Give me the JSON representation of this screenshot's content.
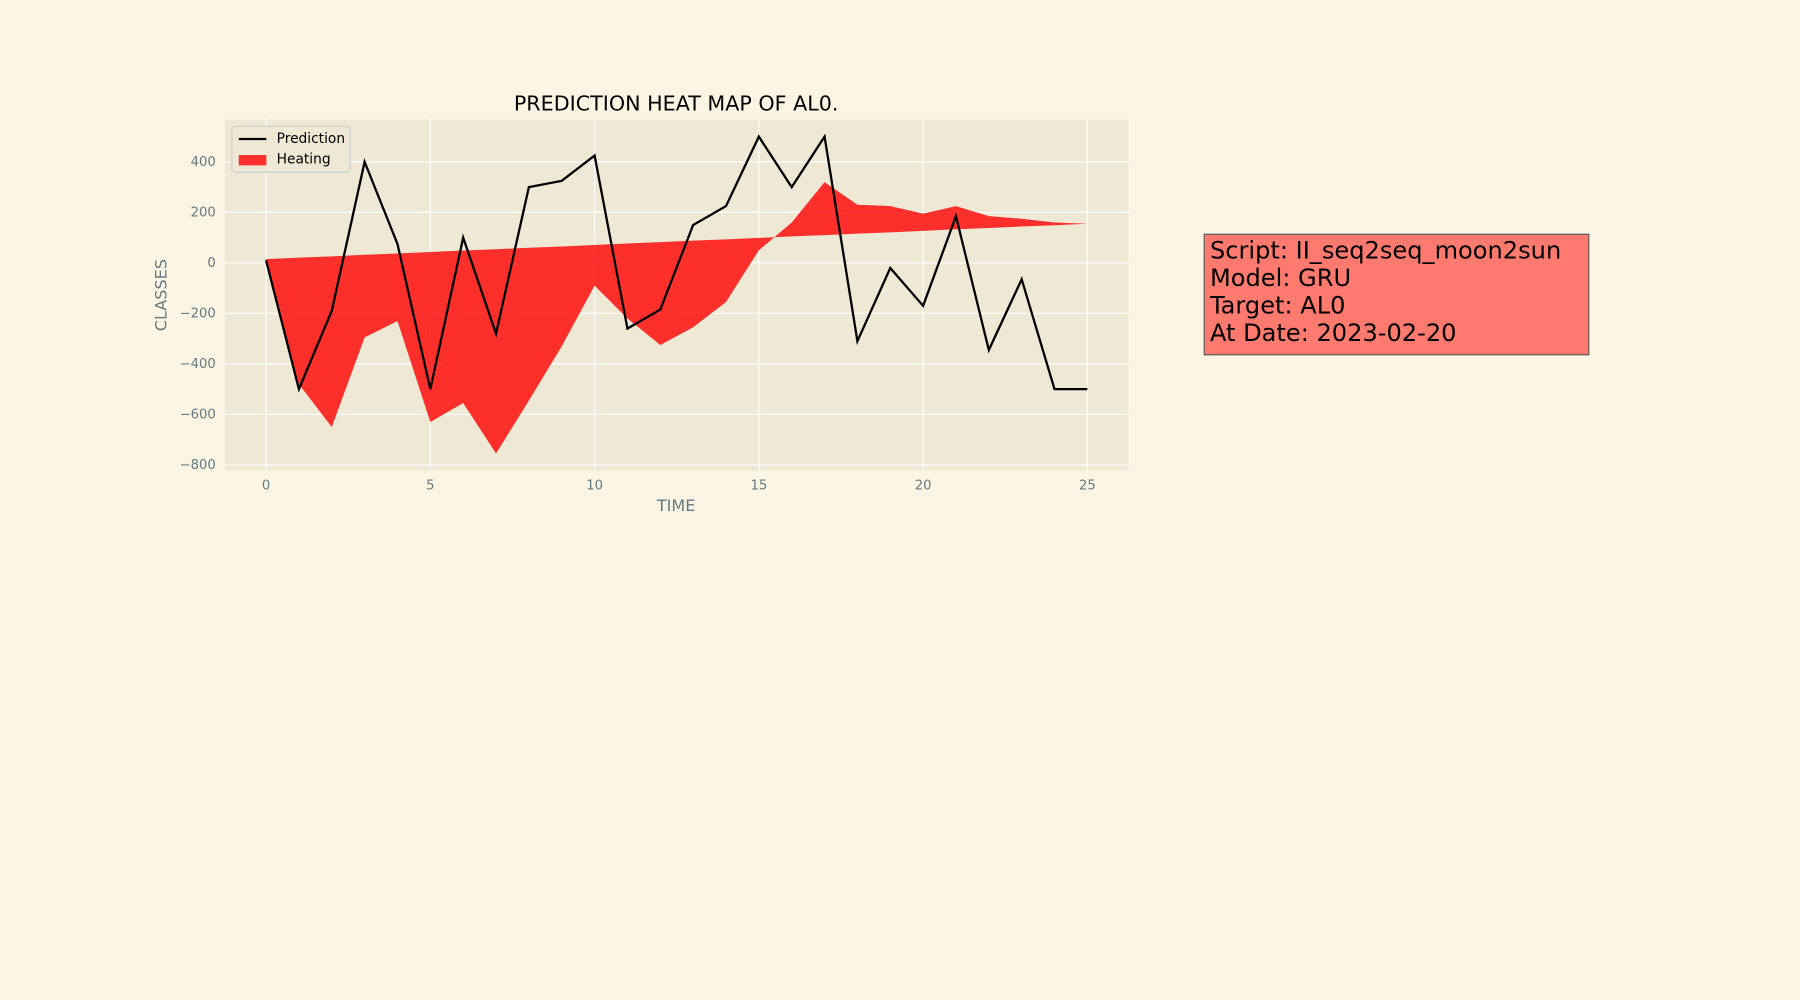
{
  "chart_data": {
    "type": "line-area",
    "title": "PREDICTION HEAT MAP OF AL0.",
    "xlabel": "TIME",
    "ylabel": "CLASSES",
    "x": [
      0,
      1,
      2,
      3,
      4,
      5,
      6,
      7,
      8,
      9,
      10,
      11,
      12,
      13,
      14,
      15,
      16,
      17,
      18,
      19,
      20,
      21,
      22,
      23,
      24,
      25
    ],
    "series": [
      {
        "name": "Prediction",
        "color": "#000000",
        "values": [
          10,
          -500,
          -190,
          400,
          75,
          -500,
          100,
          -280,
          300,
          325,
          425,
          -260,
          -185,
          150,
          225,
          500,
          300,
          500,
          -310,
          -20,
          -170,
          185,
          -345,
          -65,
          -500,
          -500
        ]
      },
      {
        "name": "Heating",
        "color": "#ff0000",
        "values": [
          10,
          -480,
          -650,
          -295,
          -230,
          -630,
          -555,
          -755,
          -545,
          -330,
          -90,
          -220,
          -325,
          -255,
          -155,
          50,
          160,
          320,
          230,
          225,
          195,
          225,
          185,
          175,
          160,
          155
        ],
        "baseline": [
          15,
          21,
          26,
          32,
          37,
          43,
          49,
          54,
          60,
          65,
          71,
          77,
          82,
          88,
          93,
          99,
          105,
          110,
          116,
          121,
          127,
          133,
          138,
          144,
          149,
          155
        ]
      }
    ],
    "xlim": [
      -1.25,
      26.25
    ],
    "ylim": [
      -823,
      568
    ],
    "xticks": [
      0,
      5,
      10,
      15,
      20,
      25
    ],
    "yticks": [
      {
        "value": -800,
        "label": "−800"
      },
      {
        "value": -600,
        "label": "−600"
      },
      {
        "value": -400,
        "label": "−400"
      },
      {
        "value": -200,
        "label": "−200"
      },
      0,
      200,
      400
    ],
    "grid": true,
    "legend": "upper left",
    "annotations": [
      "Script: II_seq2seq_moon2sun",
      "Model: GRU",
      "Target: AL0",
      "At Date: 2023-02-20"
    ]
  }
}
